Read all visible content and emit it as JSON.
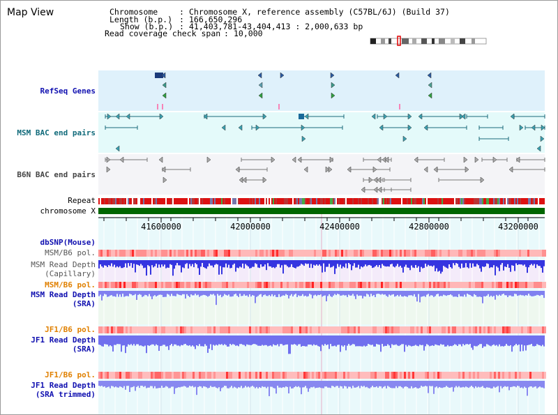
{
  "map_title": "Map View",
  "header": {
    "chrom_label": "Chromosome",
    "chrom_value": "Chromosome X, reference assembly (C57BL/6J) (Build 37)",
    "length_label": "Length (b.p.)",
    "length_value": "166,650,296",
    "show_label": "Show (b.p.)",
    "show_value": "41,403,781-43,404,413 : 2,000,633 bp",
    "coverage_label": "Read coverage check span",
    "coverage_value": "10,000"
  },
  "tracks": {
    "refseq": "RefSeq Genes",
    "msm_bac": "MSM BAC end pairs",
    "b6n_bac": "B6N BAC end pairs",
    "repeat": "Repeat",
    "chromosome": "chromosome X",
    "dbsnp": "dbSNP(Mouse)",
    "msm_b6_pol_1": "MSM/B6 pol.",
    "msm_depth_cap_1": "MSM Read Depth",
    "msm_depth_cap_2": "(Capillary)",
    "msm_b6_pol_2": "MSM/B6 pol.",
    "msm_depth_sra_1": "MSM Read Depth",
    "msm_depth_sra_2": "(SRA)",
    "jf1_b6_pol_1": "JF1/B6 pol.",
    "jf1_depth_sra_1": "JF1 Read Depth",
    "jf1_depth_sra_2": "(SRA)",
    "jf1_b6_pol_2": "JF1/B6 pol.",
    "jf1_depth_trim_1": "JF1 Read Depth",
    "jf1_depth_trim_2": "(SRA trimmed)"
  },
  "axis_ticks": [
    "41600000",
    "42000000",
    "42400000",
    "42800000",
    "43200000"
  ],
  "colors": {
    "refseq_bg": "#dff1fb",
    "msm_bac_bg": "#e4fafa",
    "chrom_bar": "#006600",
    "cap_depth": "#3030e0",
    "sra_depth": "#7878f0"
  }
}
